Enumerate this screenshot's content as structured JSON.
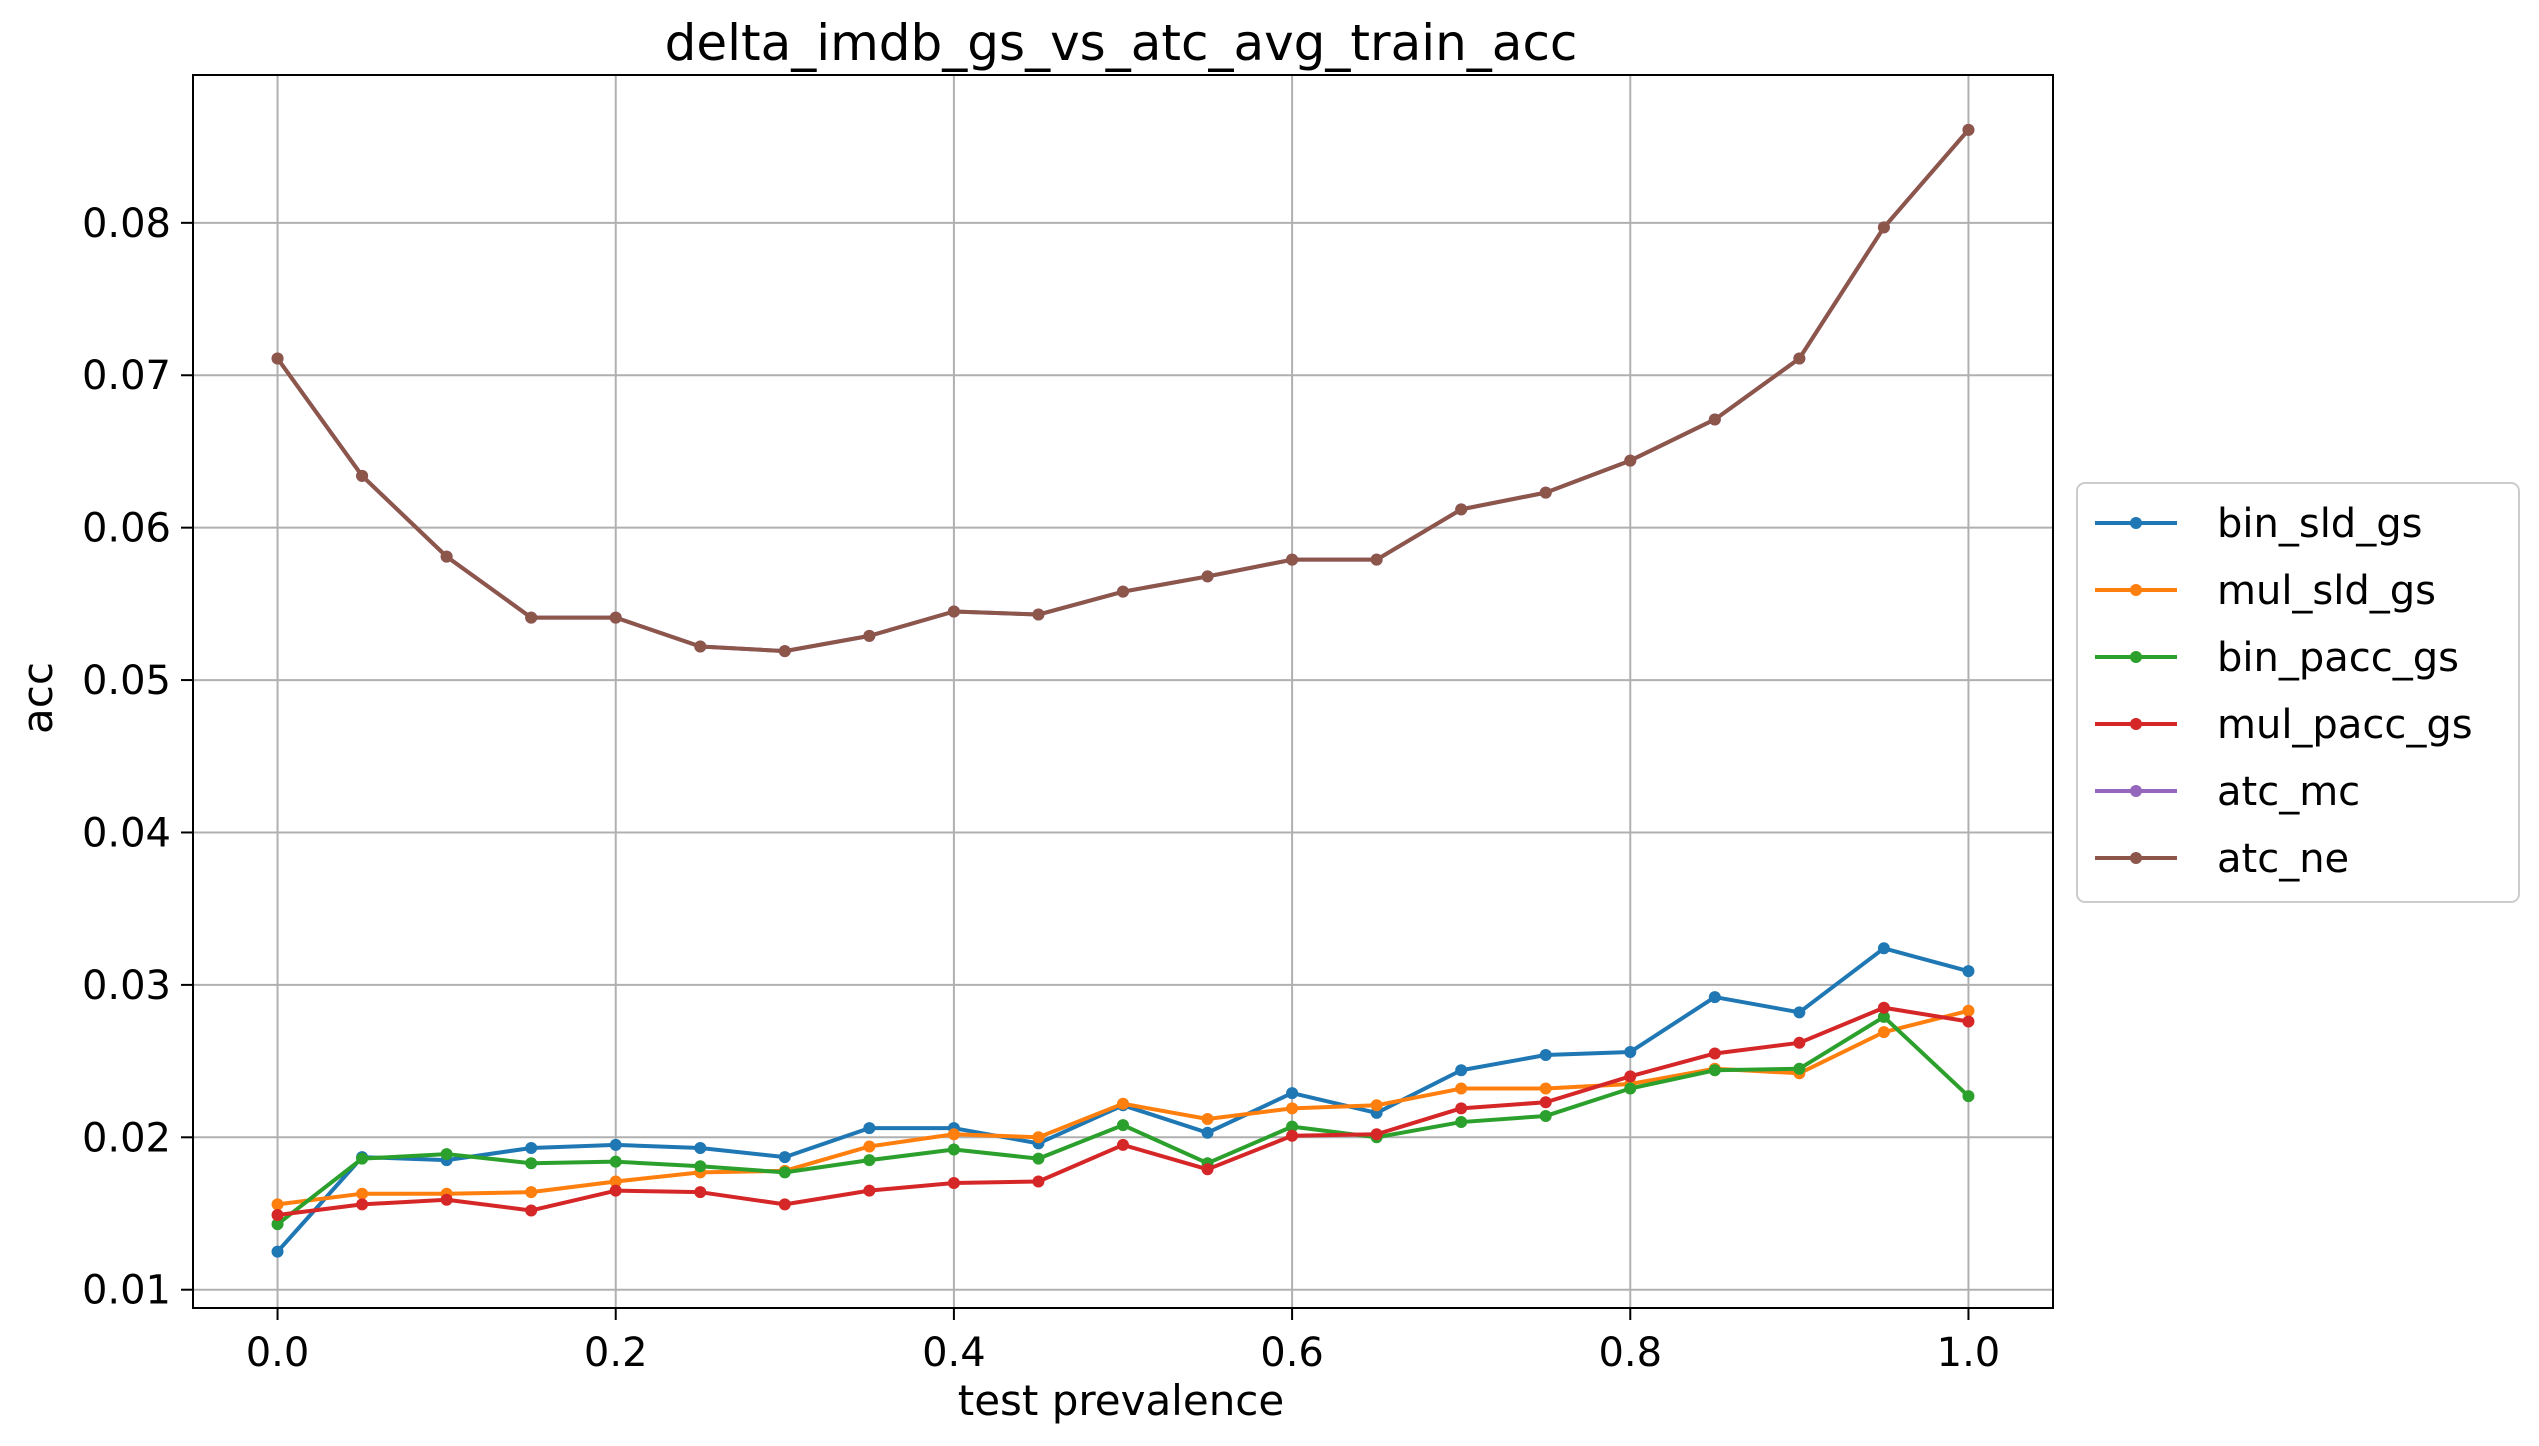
{
  "chart_data": {
    "type": "line",
    "title": "delta_imdb_gs_vs_atc_avg_train_acc",
    "xlabel": "test prevalence",
    "ylabel": "acc",
    "xlim": [
      -0.05,
      1.05
    ],
    "ylim": [
      0.0088,
      0.0897
    ],
    "xticks": [
      0.0,
      0.2,
      0.4,
      0.6,
      0.8,
      1.0
    ],
    "xtick_labels": [
      "0.0",
      "0.2",
      "0.4",
      "0.6",
      "0.8",
      "1.0"
    ],
    "yticks": [
      0.01,
      0.02,
      0.03,
      0.04,
      0.05,
      0.06,
      0.07,
      0.08
    ],
    "ytick_labels": [
      "0.01",
      "0.02",
      "0.03",
      "0.04",
      "0.05",
      "0.06",
      "0.07",
      "0.08"
    ],
    "grid": true,
    "legend_position": "center-right-outside",
    "x": [
      0.0,
      0.05,
      0.1,
      0.15,
      0.2,
      0.25,
      0.3,
      0.35,
      0.4,
      0.45,
      0.5,
      0.55,
      0.6,
      0.65,
      0.7,
      0.75,
      0.8,
      0.85,
      0.9,
      0.95,
      1.0
    ],
    "series": [
      {
        "name": "bin_sld_gs",
        "color": "#1f77b4",
        "values": [
          0.0125,
          0.0187,
          0.0185,
          0.0193,
          0.0195,
          0.0193,
          0.0187,
          0.0206,
          0.0206,
          0.0196,
          0.0221,
          0.0203,
          0.0229,
          0.0216,
          0.0244,
          0.0254,
          0.0256,
          0.0292,
          0.0282,
          0.0324,
          0.0309
        ]
      },
      {
        "name": "mul_sld_gs",
        "color": "#ff7f0e",
        "values": [
          0.0156,
          0.0163,
          0.0163,
          0.0164,
          0.0171,
          0.0177,
          0.0178,
          0.0194,
          0.0202,
          0.02,
          0.0222,
          0.0212,
          0.0219,
          0.0221,
          0.0232,
          0.0232,
          0.0235,
          0.0245,
          0.0242,
          0.0269,
          0.0283
        ]
      },
      {
        "name": "bin_pacc_gs",
        "color": "#2ca02c",
        "values": [
          0.0143,
          0.0186,
          0.0189,
          0.0183,
          0.0184,
          0.0181,
          0.0177,
          0.0185,
          0.0192,
          0.0186,
          0.0208,
          0.0183,
          0.0207,
          0.02,
          0.021,
          0.0214,
          0.0232,
          0.0244,
          0.0245,
          0.0279,
          0.0227
        ]
      },
      {
        "name": "mul_pacc_gs",
        "color": "#d62728",
        "values": [
          0.0149,
          0.0156,
          0.0159,
          0.0152,
          0.0165,
          0.0164,
          0.0156,
          0.0165,
          0.017,
          0.0171,
          0.0195,
          0.0179,
          0.0201,
          0.0202,
          0.0219,
          0.0223,
          0.024,
          0.0255,
          0.0262,
          0.0285,
          0.0276
        ]
      },
      {
        "name": "atc_mc",
        "color": "#9467bd",
        "values": [
          0.0711,
          0.0634,
          0.0581,
          0.0541,
          0.0541,
          0.0522,
          0.0519,
          0.0529,
          0.0545,
          0.0543,
          0.0558,
          0.0568,
          0.0579,
          0.0579,
          0.0612,
          0.0623,
          0.0644,
          0.0671,
          0.0711,
          0.0797,
          0.0861
        ]
      },
      {
        "name": "atc_ne",
        "color": "#8c564b",
        "values": [
          0.0711,
          0.0634,
          0.0581,
          0.0541,
          0.0541,
          0.0522,
          0.0519,
          0.0529,
          0.0545,
          0.0543,
          0.0558,
          0.0568,
          0.0579,
          0.0579,
          0.0612,
          0.0623,
          0.0644,
          0.0671,
          0.0711,
          0.0797,
          0.0861
        ]
      }
    ]
  }
}
